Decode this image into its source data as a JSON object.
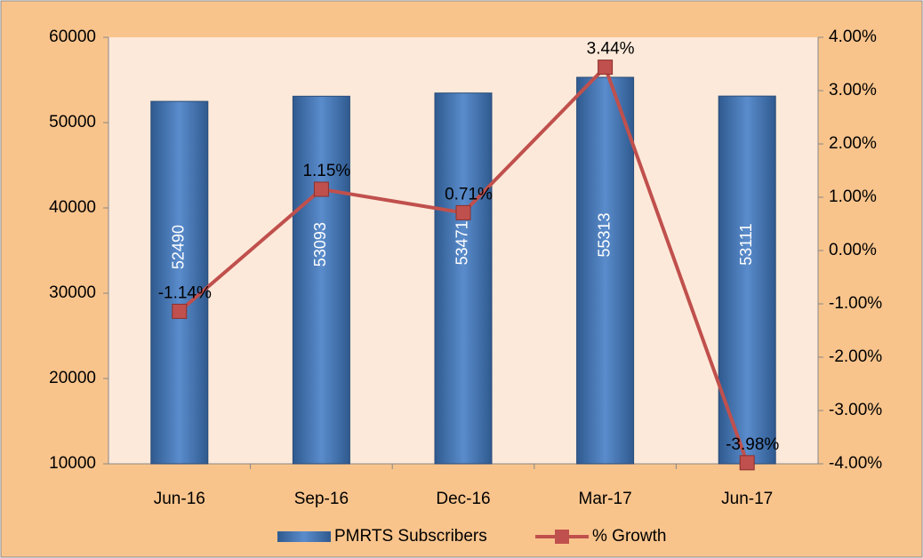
{
  "chart_data": {
    "type": "bar",
    "categories": [
      "Jun-16",
      "Sep-16",
      "Dec-16",
      "Mar-17",
      "Jun-17"
    ],
    "series": [
      {
        "name": "PMRTS Subscribers",
        "color": "#4f81bd",
        "values": [
          52490,
          53093,
          53471,
          55313,
          53111
        ]
      },
      {
        "name": "% Growth",
        "color": "#c0504d",
        "type": "line",
        "axis": "y2",
        "values": [
          -1.14,
          1.15,
          0.71,
          3.44,
          -3.98
        ],
        "value_labels": [
          "-1.14%",
          "1.15%",
          "0.71%",
          "3.44%",
          "-3.98%"
        ]
      }
    ],
    "ylim": [
      10000,
      60000
    ],
    "yticks": [
      10000,
      20000,
      30000,
      40000,
      50000,
      60000
    ],
    "y2lim": [
      -4,
      4
    ],
    "y2ticks": [
      {
        "value": -4,
        "label": "-4.00%"
      },
      {
        "value": -3,
        "label": "-3.00%"
      },
      {
        "value": -2,
        "label": "-2.00%"
      },
      {
        "value": -1,
        "label": "-1.00%"
      },
      {
        "value": 0,
        "label": "0.00%"
      },
      {
        "value": 1,
        "label": "1.00%"
      },
      {
        "value": 2,
        "label": "2.00%"
      },
      {
        "value": 3,
        "label": "3.00%"
      },
      {
        "value": 4,
        "label": "4.00%"
      }
    ],
    "grid": false,
    "legend": "bottom"
  }
}
